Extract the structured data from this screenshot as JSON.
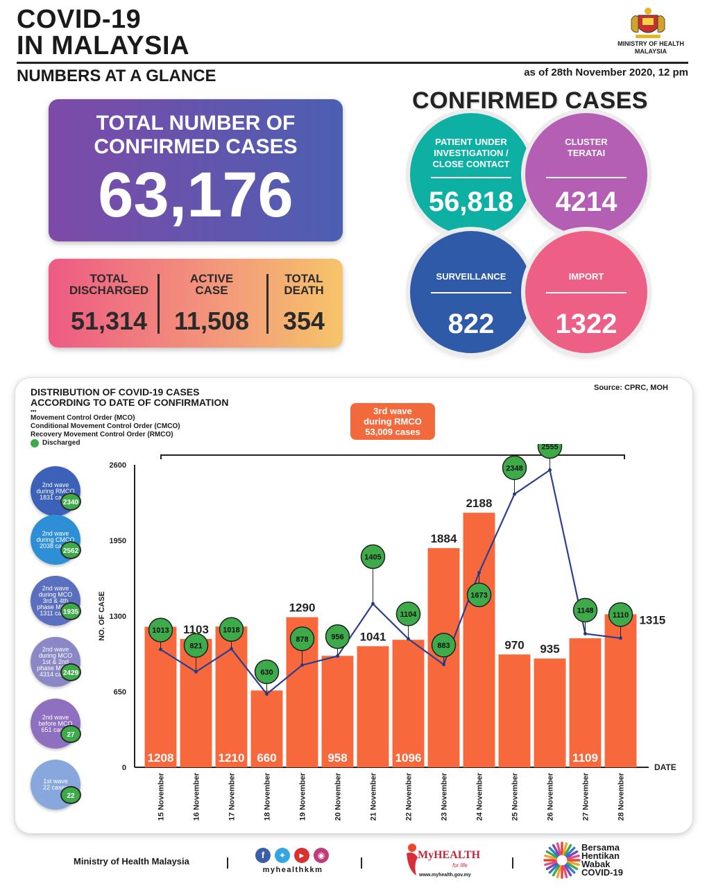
{
  "header": {
    "title_line1": "COVID-19",
    "title_line2": "IN MALAYSIA",
    "subtitle": "NUMBERS AT A GLANCE",
    "as_of": "as of 28th November 2020, 12 pm",
    "ministry": "MINISTRY OF HEALTH MALAYSIA"
  },
  "total": {
    "label": "TOTAL NUMBER OF CONFIRMED CASES",
    "value": "63,176"
  },
  "stats": [
    {
      "label": "TOTAL DISCHARGED",
      "value": "51,314"
    },
    {
      "label": "ACTIVE CASE",
      "value": "11,508"
    },
    {
      "label": "TOTAL DEATH",
      "value": "354"
    }
  ],
  "confirmed": {
    "heading": "CONFIRMED CASES",
    "circles": [
      {
        "label": "PATIENT UNDER INVESTIGATION / CLOSE CONTACT",
        "value": "56,818",
        "color": "#0fb0a4"
      },
      {
        "label": "CLUSTER TERATAI",
        "value": "4214",
        "color": "#b45fb4"
      },
      {
        "label": "SURVEILLANCE",
        "value": "822",
        "color": "#2e5aa8"
      },
      {
        "label": "IMPORT",
        "value": "1322",
        "color": "#ee5f86"
      }
    ]
  },
  "distribution": {
    "title_line1": "DISTRIBUTION OF COVID-19 CASES",
    "title_line2": "ACCORDING TO DATE OF CONFIRMATION",
    "source": "Source: CPRC, MOH",
    "dots": "•••",
    "legend": [
      "Movement Control Order (MCO)",
      "Conditional Movement Control Order (CMCO)",
      "Recovery Movement Control Order (RMCO)"
    ],
    "legend_discharged": "Discharged",
    "callout": [
      "3rd wave",
      "during RMCO",
      "53,009 cases"
    ],
    "waves": [
      {
        "lines": [
          "2nd wave",
          "during RMCO",
          "1831 cases"
        ],
        "discharged": "2340",
        "color": "#3b62b8"
      },
      {
        "lines": [
          "2nd wave",
          "during CMCO",
          "2038 cases"
        ],
        "discharged": "2562",
        "color": "#2f8fd6"
      },
      {
        "lines": [
          "2nd wave",
          "during MCO",
          "3rd & 4th",
          "phase MCO -",
          "1311 cases"
        ],
        "discharged": "1935",
        "color": "#5b6fbf"
      },
      {
        "lines": [
          "2nd wave",
          "during MCO",
          "1st & 2nd",
          "phase MCO -",
          "4314 cases"
        ],
        "discharged": "2429",
        "color": "#8c88c8"
      },
      {
        "lines": [
          "2nd wave",
          "before MCO",
          "651 cases"
        ],
        "discharged": "27",
        "color": "#8e6fc0"
      },
      {
        "lines": [
          "1st wave",
          "22 cases"
        ],
        "discharged": "22",
        "color": "#88a7dd"
      }
    ]
  },
  "chart_data": {
    "type": "bar",
    "title": "DISTRIBUTION OF COVID-19 CASES ACCORDING TO DATE OF CONFIRMATION",
    "xlabel": "DATE",
    "ylabel": "NO. OF CASE",
    "ylim": [
      0,
      2600
    ],
    "yticks": [
      "0",
      "650",
      "1300",
      "1950",
      "2600"
    ],
    "categories": [
      "15 November",
      "16 November",
      "17 November",
      "18 November",
      "19 November",
      "20 November",
      "21 November",
      "22 November",
      "23 November",
      "24 November",
      "25 November",
      "26 November",
      "27 November",
      "28 November"
    ],
    "series": [
      {
        "type": "bar",
        "values": [
          1208,
          1103,
          1210,
          660,
          1290,
          958,
          1041,
          1096,
          1884,
          2188,
          970,
          935,
          1109,
          1315
        ],
        "labels": [
          "1208",
          "1103",
          "1210",
          "660",
          "1290",
          "958",
          "1041",
          "1096",
          "1884",
          "2188",
          "970",
          "935",
          "1109",
          "1315"
        ],
        "color": "#f7693c"
      },
      {
        "name": "Discharged",
        "type": "line",
        "values": [
          1013,
          821,
          1018,
          630,
          878,
          956,
          1405,
          1104,
          883,
          1673,
          2348,
          2555,
          1148,
          1110
        ],
        "labels": [
          "1013",
          "821",
          "1018",
          "630",
          "878",
          "956",
          "1405",
          "1104",
          "883",
          "1673",
          "2348",
          "2555",
          "1148",
          "1110"
        ],
        "color": "#2a3f8f",
        "marker_color": "#3dab4a"
      }
    ],
    "grid": false
  },
  "footer": {
    "ministry": "Ministry of Health Malaysia",
    "social": "myhealthkkm",
    "myhealth": "MyHEALTH",
    "myhealth_tag": "for life",
    "myhealth_url": "www.myhealth.gov.my",
    "campaign": [
      "Bersama",
      "Hentikan",
      "Wabak",
      "COVID-19"
    ]
  }
}
